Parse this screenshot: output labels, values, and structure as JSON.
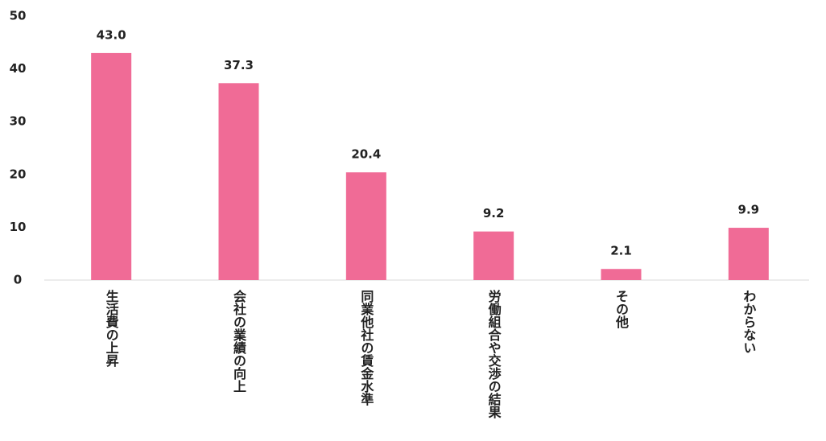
{
  "chart_data": {
    "type": "bar",
    "categories": [
      "生活費の上昇",
      "会社の業績の向上",
      "同業他社の賃金水準",
      "労働組合や交渉の結果",
      "その他",
      "わからない"
    ],
    "values": [
      43.0,
      37.3,
      20.4,
      9.2,
      2.1,
      9.9
    ],
    "value_labels": [
      "43.0",
      "37.3",
      "20.4",
      "9.2",
      "2.1",
      "9.9"
    ],
    "color": "#f06b96",
    "ylim": [
      0,
      50
    ],
    "yticks": [
      0,
      10,
      20,
      30,
      40,
      50
    ],
    "grid": false
  }
}
